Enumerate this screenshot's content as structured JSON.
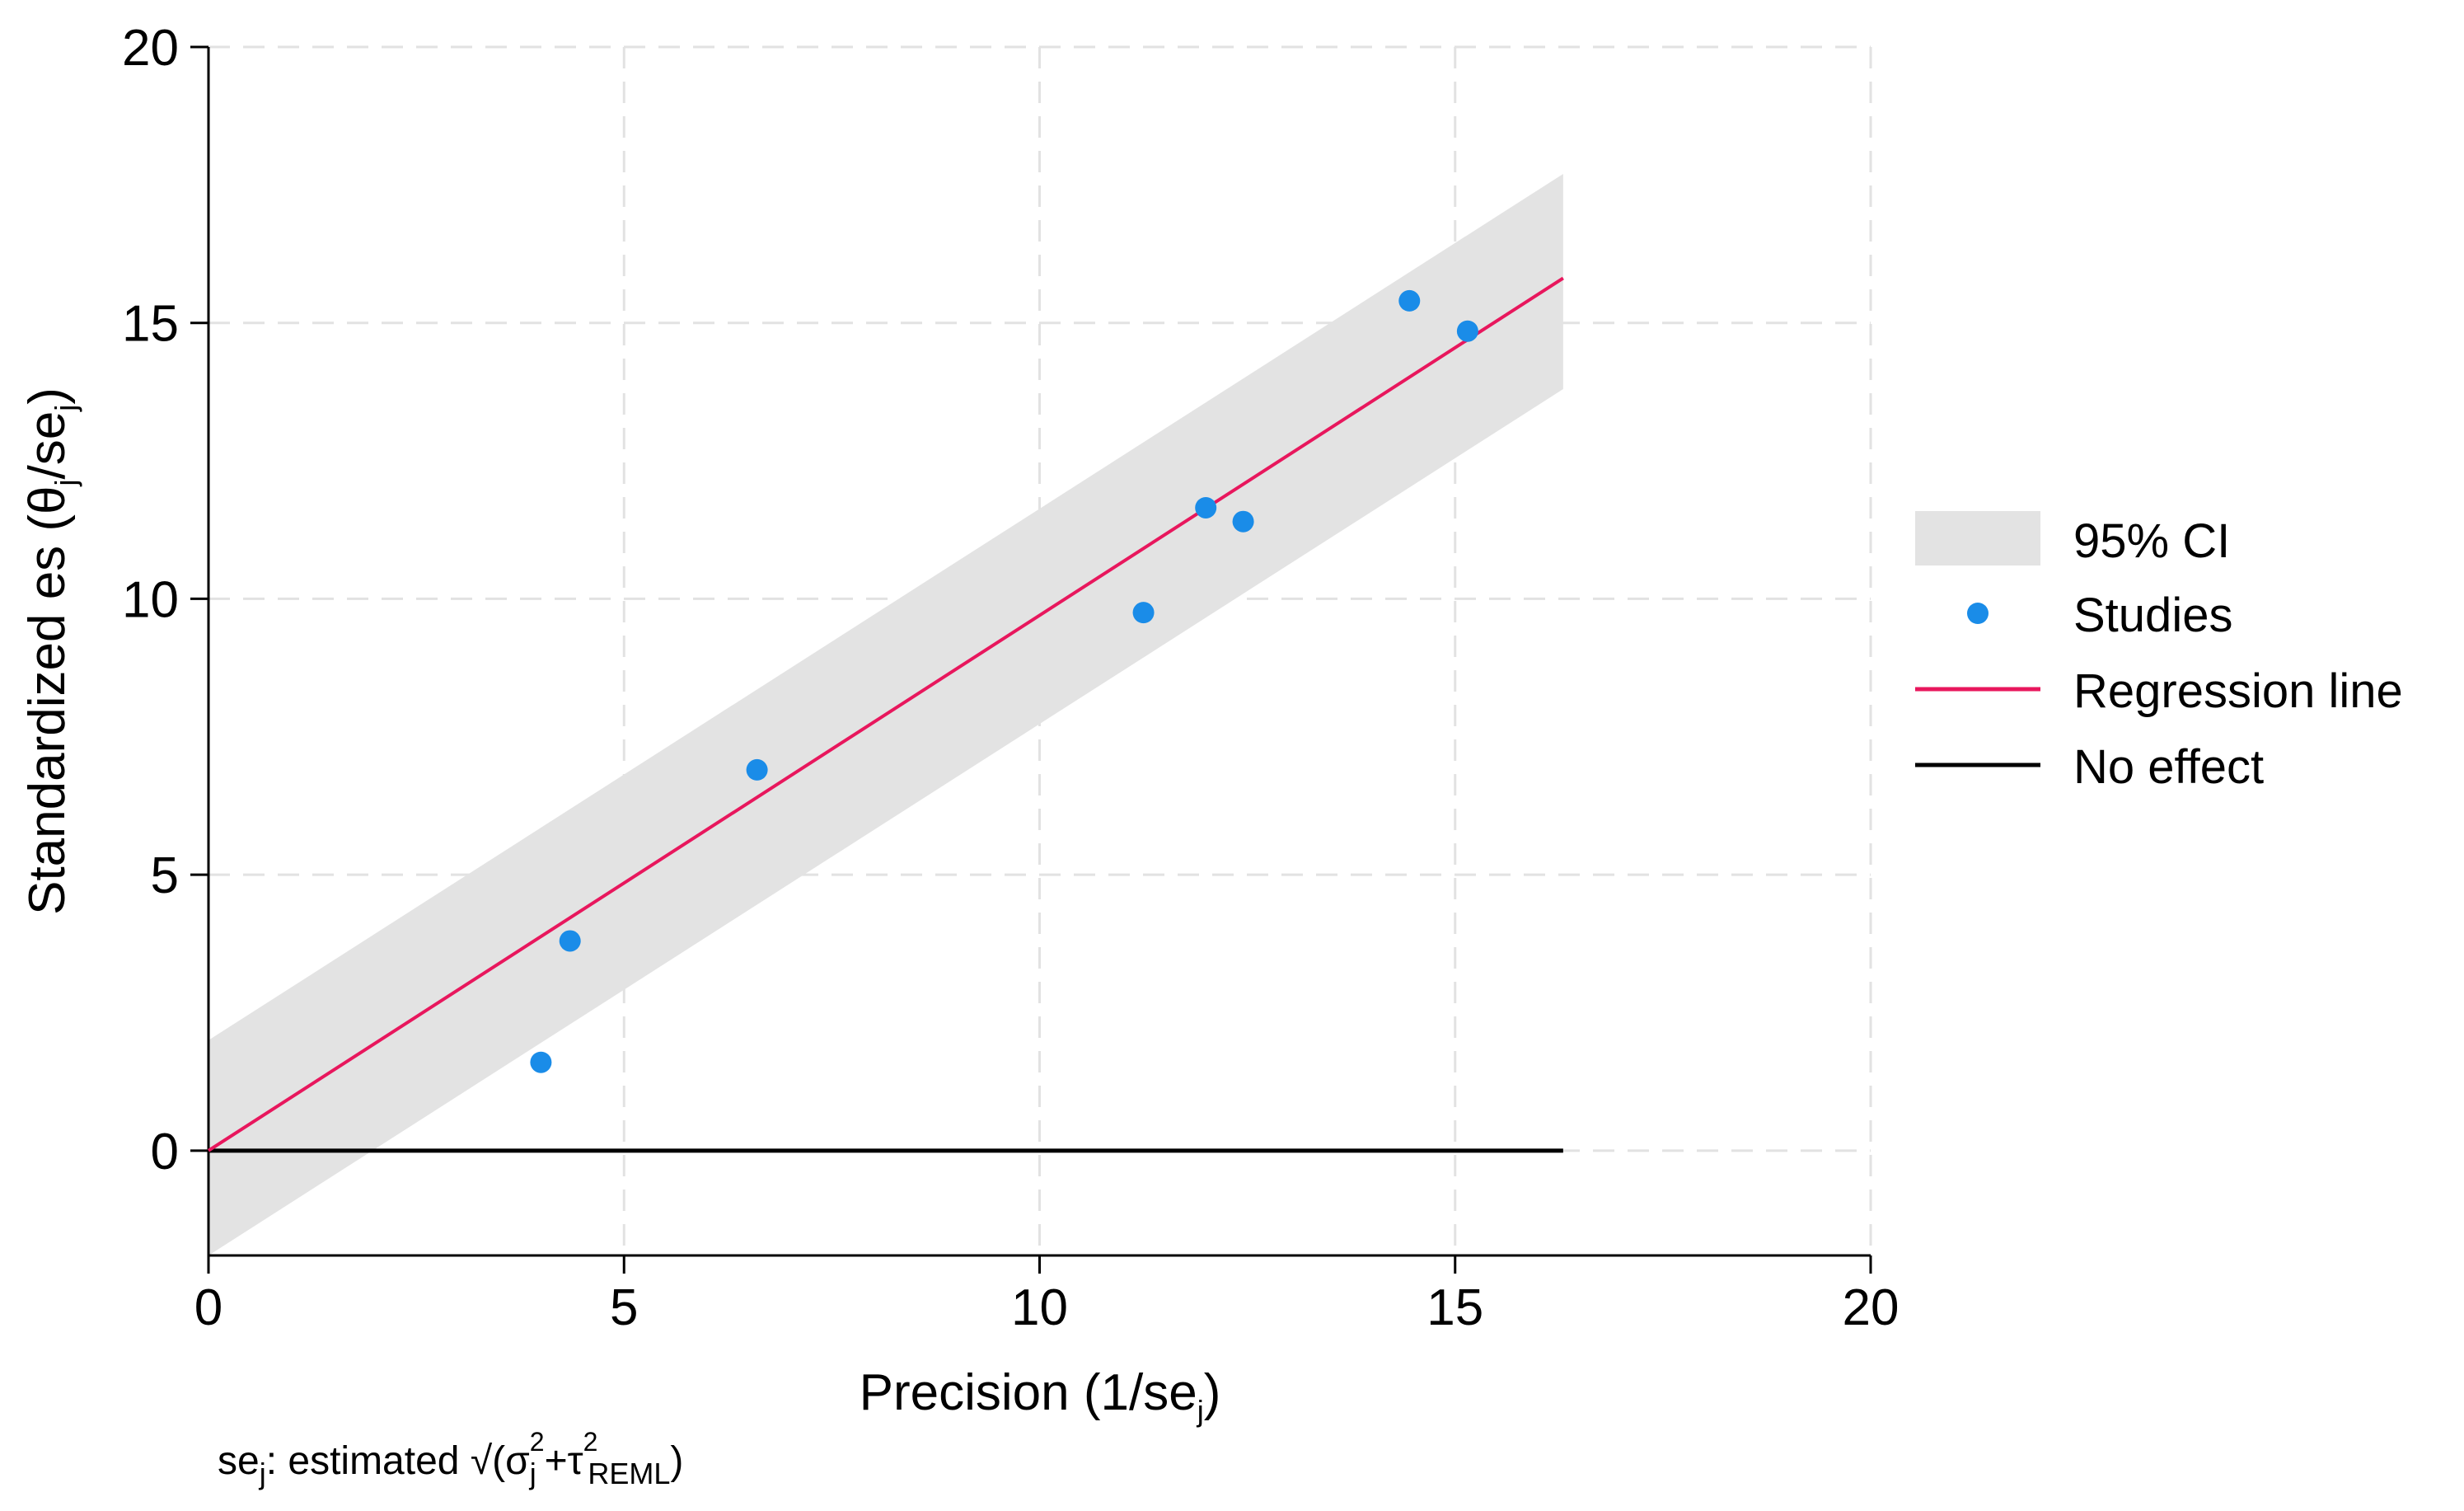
{
  "chart_data": {
    "type": "scatter",
    "title": "",
    "xlabel": "Precision (1/se",
    "xlabel_sub": "j",
    "xlabel_close": ")",
    "ylabel": "Standardized es  (θ",
    "ylabel_sub": "j",
    "ylabel_mid": "/se",
    "ylabel_sub2": "j",
    "ylabel_close": ")",
    "xlim": [
      0,
      20
    ],
    "ylim": [
      -1.9,
      20
    ],
    "xticks": [
      0,
      5,
      10,
      15,
      20
    ],
    "yticks": [
      0,
      5,
      10,
      15,
      20
    ],
    "xtick_labels": [
      "0",
      "5",
      "10",
      "15",
      "20"
    ],
    "ytick_labels": [
      "0",
      "5",
      "10",
      "15",
      "20"
    ],
    "grid": true,
    "studies": {
      "name": "Studies",
      "color": "#1a8ce8",
      "x": [
        4.0,
        4.35,
        6.6,
        11.25,
        12.0,
        12.45,
        14.45,
        15.15
      ],
      "y": [
        1.6,
        3.8,
        6.9,
        9.75,
        11.65,
        11.4,
        15.4,
        14.85
      ]
    },
    "regression": {
      "name": "Regression line",
      "color": "#e8175d",
      "intercept": 0,
      "slope": 0.97,
      "x_range": [
        0,
        16.3
      ]
    },
    "ci": {
      "name": "95% CI",
      "color": "#e3e3e3",
      "lower_at_start": -1.9,
      "upper_at_start": 2.0,
      "lower_at_end": 13.8,
      "upper_at_end": 17.7,
      "x_range": [
        0,
        16.3
      ]
    },
    "no_effect": {
      "name": "No effect",
      "color": "#000000",
      "y": 0,
      "x_range": [
        0,
        16.3
      ]
    },
    "legend": [
      {
        "label": "95% CI",
        "kind": "band"
      },
      {
        "label": "Studies",
        "kind": "marker"
      },
      {
        "label": "Regression line",
        "kind": "line-red"
      },
      {
        "label": "No effect",
        "kind": "line-black"
      }
    ],
    "legend_position": "right",
    "note": {
      "lead": "se",
      "lead_sub": "j",
      "text": ": estimated √(σ",
      "sigma_sub": "j",
      "sigma_sup": "2",
      "plus": "+τ",
      "tau_sup": "2",
      "tau_sub": "REML",
      "close": ")"
    }
  }
}
